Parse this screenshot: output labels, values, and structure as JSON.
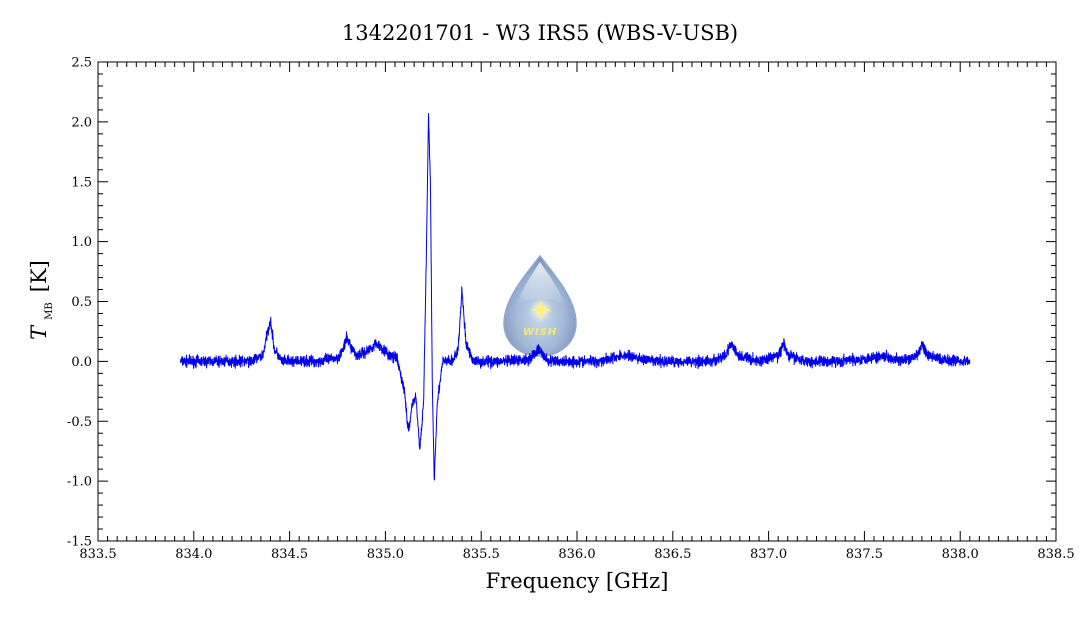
{
  "chart_data": {
    "type": "line",
    "title": "1342201701 - W3 IRS5 (WBS-V-USB)",
    "xlabel": "Frequency [GHz]",
    "ylabel_main": "T",
    "ylabel_sub": "MB",
    "ylabel_unit": "[K]",
    "xlim": [
      833.5,
      838.5
    ],
    "ylim": [
      -1.5,
      2.5
    ],
    "x_ticks": [
      "833.5",
      "834.0",
      "834.5",
      "835.0",
      "835.5",
      "836.0",
      "836.5",
      "837.0",
      "837.5",
      "838.0",
      "838.5"
    ],
    "y_ticks": [
      "-1.5",
      "-1.0",
      "-0.5",
      "0.0",
      "0.5",
      "1.0",
      "1.5",
      "2.0",
      "2.5"
    ],
    "grid": false,
    "logo_text": "WISH",
    "series": [
      {
        "color": "#0000ee",
        "x": [
          833.93,
          834.0,
          834.1,
          834.2,
          834.3,
          834.36,
          834.39,
          834.4,
          834.42,
          834.46,
          834.55,
          834.65,
          834.75,
          834.78,
          834.8,
          834.82,
          834.85,
          834.9,
          834.93,
          834.95,
          834.98,
          835.02,
          835.06,
          835.1,
          835.12,
          835.14,
          835.16,
          835.18,
          835.2,
          835.215,
          835.225,
          835.235,
          835.245,
          835.255,
          835.27,
          835.3,
          835.35,
          835.38,
          835.4,
          835.42,
          835.46,
          835.55,
          835.65,
          835.75,
          835.8,
          835.85,
          835.95,
          836.1,
          836.25,
          836.4,
          836.5,
          836.7,
          836.78,
          836.8,
          836.84,
          836.95,
          837.05,
          837.08,
          837.1,
          837.2,
          837.35,
          837.5,
          837.6,
          837.7,
          837.78,
          837.8,
          837.83,
          837.9,
          838.05
        ],
        "y": [
          0.0,
          0.0,
          0.0,
          0.0,
          0.0,
          0.05,
          0.28,
          0.35,
          0.1,
          0.0,
          0.0,
          0.0,
          0.03,
          0.1,
          0.2,
          0.12,
          0.05,
          0.08,
          0.12,
          0.15,
          0.12,
          0.05,
          0.02,
          -0.25,
          -0.6,
          -0.35,
          -0.3,
          -0.75,
          -0.3,
          1.0,
          2.05,
          1.5,
          -0.2,
          -1.0,
          -0.35,
          0.0,
          0.0,
          0.1,
          0.6,
          0.15,
          0.0,
          0.0,
          0.0,
          0.02,
          0.1,
          0.0,
          0.0,
          0.0,
          0.05,
          0.0,
          0.0,
          0.0,
          0.05,
          0.15,
          0.05,
          0.0,
          0.05,
          0.15,
          0.05,
          0.0,
          0.0,
          0.02,
          0.05,
          0.0,
          0.05,
          0.15,
          0.05,
          0.02,
          0.0
        ]
      }
    ]
  }
}
